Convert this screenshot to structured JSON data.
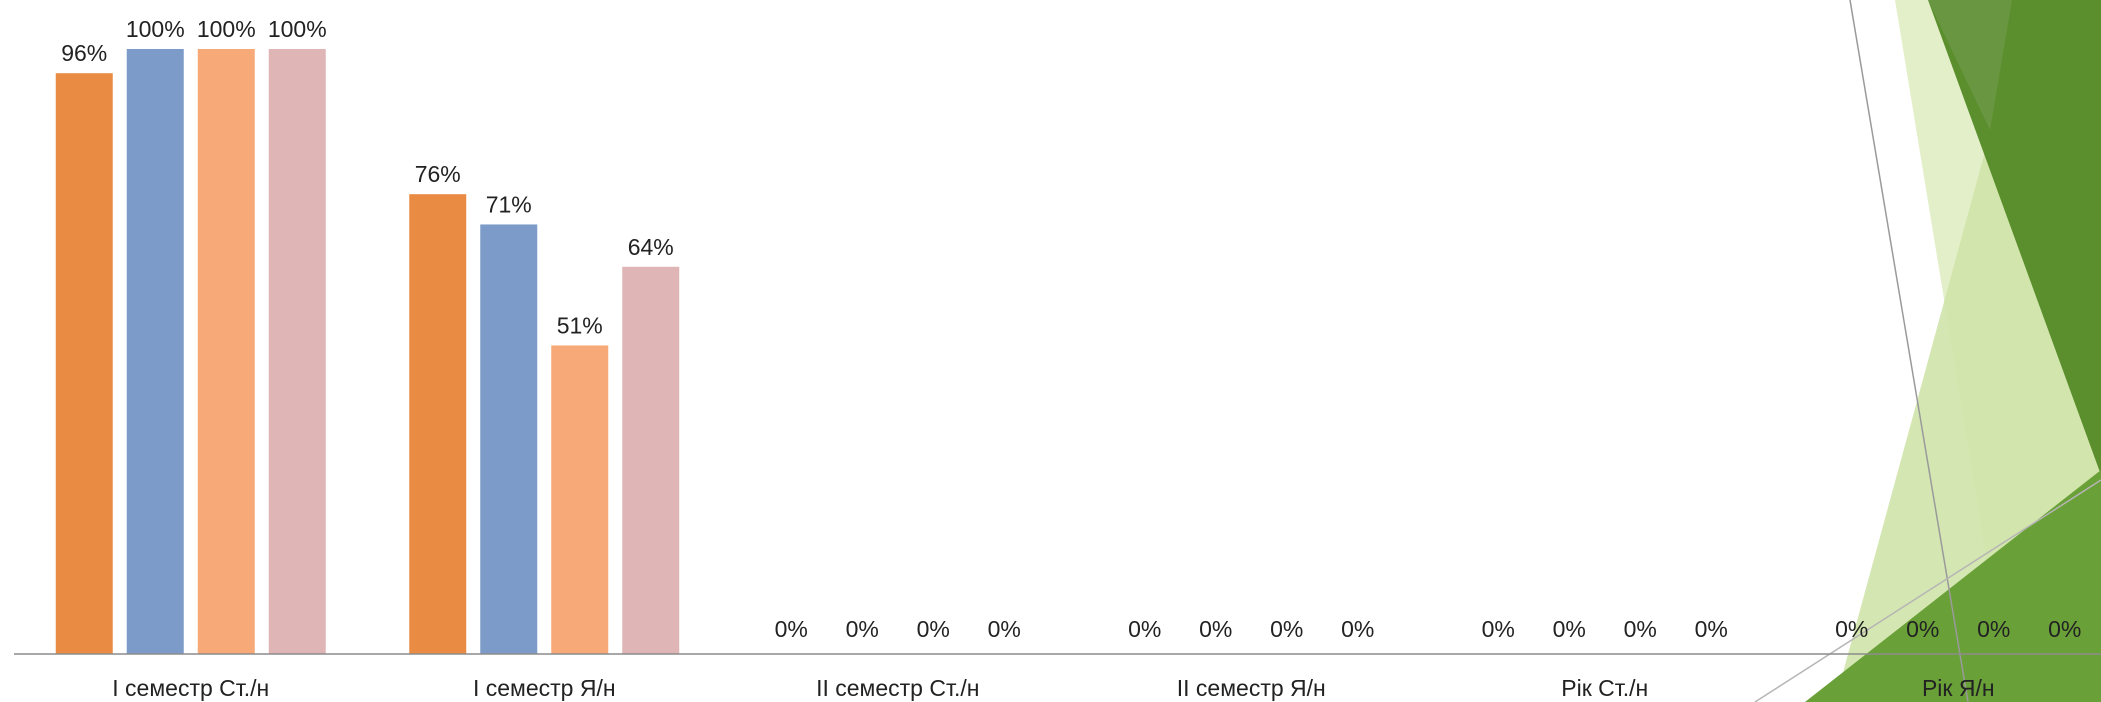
{
  "theme": {
    "axis_color": "#8c8c8c",
    "label_color": "#222222",
    "decor_greens": [
      "#5b8f2d",
      "#6aa038",
      "#7cb548",
      "#a9cf78",
      "#cfe3a8",
      "#e3efc9"
    ]
  },
  "chart_data": {
    "type": "bar",
    "categories": [
      "І семестр Ст./н",
      "І семестр Я/н",
      "ІІ семестр Ст./н",
      "ІІ семестр Я/н",
      "Рік Ст./н",
      "Рік Я/н"
    ],
    "series": [
      {
        "color": "#e98b42",
        "values": [
          96,
          76,
          0,
          0,
          0,
          0
        ]
      },
      {
        "color": "#7d9bc8",
        "values": [
          100,
          71,
          0,
          0,
          0,
          0
        ]
      },
      {
        "color": "#f7a977",
        "values": [
          100,
          51,
          0,
          0,
          0,
          0
        ]
      },
      {
        "color": "#dfb5b6",
        "values": [
          100,
          64,
          0,
          0,
          0,
          0
        ]
      }
    ],
    "labels": [
      [
        "96%",
        "76%",
        "0%",
        "0%",
        "0%",
        "0%"
      ],
      [
        "100%",
        "71%",
        "0%",
        "0%",
        "0%",
        "0%"
      ],
      [
        "100%",
        "51%",
        "0%",
        "0%",
        "0%",
        "0%"
      ],
      [
        "100%",
        "64%",
        "0%",
        "0%",
        "0%",
        "0%"
      ]
    ],
    "ylim": [
      0,
      100
    ],
    "grid": false,
    "legend": "none",
    "title": "",
    "xlabel": "",
    "ylabel": ""
  }
}
